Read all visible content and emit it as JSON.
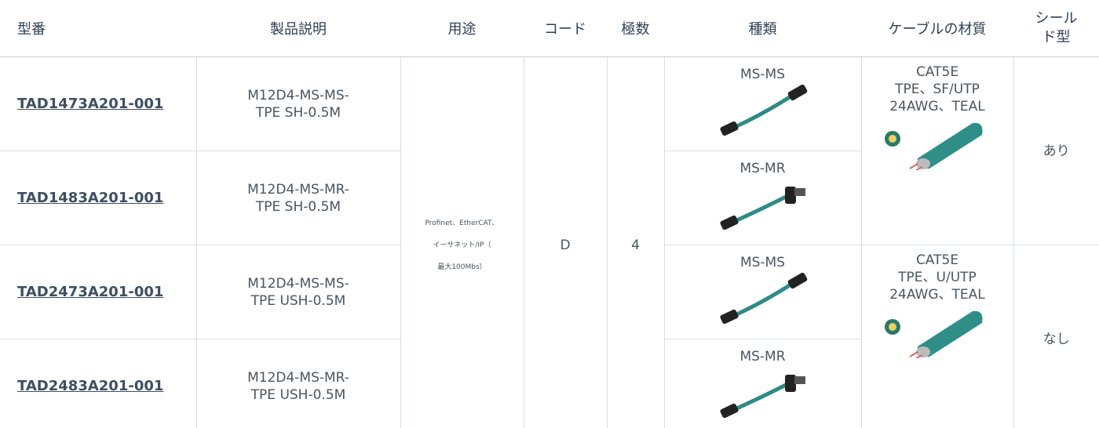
{
  "header": {
    "columns": [
      "型番",
      "製品説明",
      "用途",
      "コード",
      "極数",
      "種類",
      "ケーブルの材質",
      "シールド型"
    ]
  },
  "rows": [
    {
      "model": "TAD1473A201-001",
      "description": [
        "M12D4-MS-MS-",
        "TPE SH-0.5M"
      ],
      "type": "MS-MS"
    },
    {
      "model": "TAD1483A201-001",
      "description": [
        "M12D4-MS-MR-",
        "TPE SH-0.5M"
      ],
      "type": "MS-MR"
    },
    {
      "model": "TAD2473A201-001",
      "description": [
        "M12D4-MS-MS-",
        "TPE USH-0.5M"
      ],
      "type": "MS-MS"
    },
    {
      "model": "TAD2483A201-001",
      "description": [
        "M12D4-MS-MR-",
        "TPE USH-0.5M"
      ],
      "type": "MS-MR"
    }
  ],
  "usage": [
    "Profinet、EtherCAT、",
    "イーサネット/IP（",
    "最大100Mbs）"
  ],
  "code": "D",
  "poles": "4",
  "materials": [
    {
      "lines": [
        "CAT5E",
        "TPE、SF/UTP",
        "24AWG、TEAL"
      ],
      "shield": "あり"
    },
    {
      "lines": [
        "CAT5E",
        "TPE、U/UTP",
        "24AWG、TEAL"
      ],
      "shield": "なし"
    }
  ]
}
